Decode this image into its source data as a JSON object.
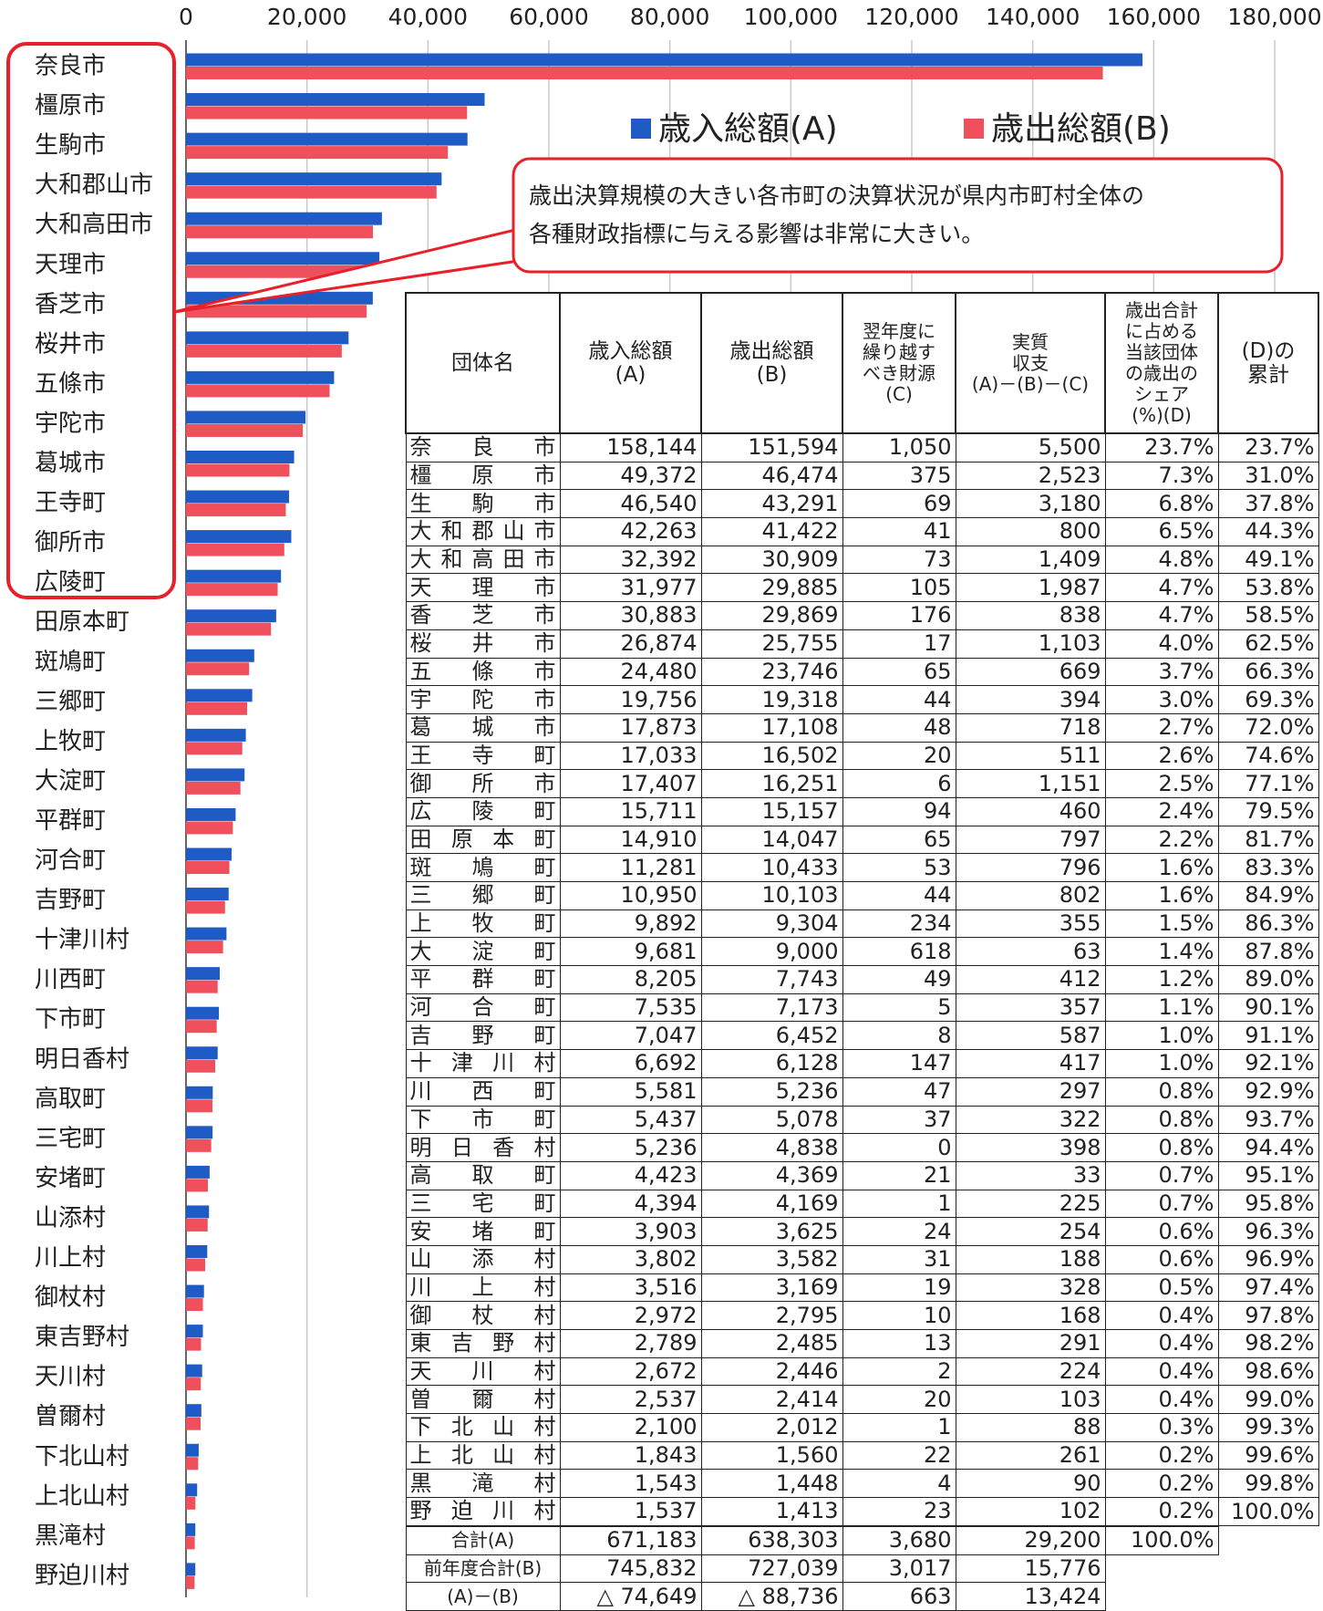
{
  "chart_data": {
    "type": "bar",
    "orientation": "horizontal",
    "categories": [
      "奈良市",
      "橿原市",
      "生駒市",
      "大和郡山市",
      "大和高田市",
      "天理市",
      "香芝市",
      "桜井市",
      "五條市",
      "宇陀市",
      "葛城市",
      "王寺町",
      "御所市",
      "広陵町",
      "田原本町",
      "斑鳩町",
      "三郷町",
      "上牧町",
      "大淀町",
      "平群町",
      "河合町",
      "吉野町",
      "十津川村",
      "川西町",
      "下市町",
      "明日香村",
      "高取町",
      "三宅町",
      "安堵町",
      "山添村",
      "川上村",
      "御杖村",
      "東吉野村",
      "天川村",
      "曽爾村",
      "下北山村",
      "上北山村",
      "黒滝村",
      "野迫川村"
    ],
    "series": [
      {
        "name": "歳入総額(A)",
        "color": "#1f5bc4",
        "values": [
          158144,
          49372,
          46540,
          42263,
          32392,
          31977,
          30883,
          26874,
          24480,
          19756,
          17873,
          17033,
          17407,
          15711,
          14910,
          11281,
          10950,
          9892,
          9681,
          8205,
          7535,
          7047,
          6692,
          5581,
          5437,
          5236,
          4423,
          4394,
          3903,
          3802,
          3516,
          2972,
          2789,
          2672,
          2537,
          2100,
          1843,
          1543,
          1537
        ]
      },
      {
        "name": "歳出総額(B)",
        "color": "#f0505c",
        "values": [
          151594,
          46474,
          43291,
          41422,
          30909,
          29885,
          29869,
          25755,
          23746,
          19318,
          17108,
          16502,
          16251,
          15157,
          14047,
          10433,
          10103,
          9304,
          9000,
          7743,
          7173,
          6452,
          6128,
          5236,
          5078,
          4838,
          4369,
          4169,
          3625,
          3582,
          3169,
          2795,
          2485,
          2446,
          2414,
          2012,
          1560,
          1448,
          1413
        ]
      }
    ],
    "xlim": [
      0,
      180000
    ],
    "xticks": [
      0,
      {
        "value": 20000,
        "label": "20,000"
      },
      {
        "value": 40000,
        "label": "40,000"
      },
      {
        "value": 60000,
        "label": "60,000"
      },
      {
        "value": 80000,
        "label": "80,000"
      },
      {
        "value": 100000,
        "label": "100,000"
      },
      {
        "value": 120000,
        "label": "120,000"
      },
      {
        "value": 140000,
        "label": "140,000"
      },
      {
        "value": 160000,
        "label": "160,000"
      },
      {
        "value": 180000,
        "label": "180,000"
      }
    ],
    "grid": true,
    "annotation": [
      "歳出決算規模の大きい各市町の決算状況が県内市町村全体の",
      "各種財政指標に与える影響は非常に大きい。"
    ]
  },
  "table": {
    "header": [
      "団体名",
      "歳入総額\n(A)",
      "歳出総額\n(B)",
      "翌年度に\n繰り越す\nべき財源\n(C)",
      "実質\n収支\n(A)－(B)－(C)",
      "歳出合計\nに占める\n当該団体\nの歳出の\nシェア\n(%)(D)",
      "(D)の\n累計"
    ],
    "rows": [
      [
        "奈良市",
        "158,144",
        "151,594",
        "1,050",
        "5,500",
        "23.7%",
        "23.7%"
      ],
      [
        "橿原市",
        "49,372",
        "46,474",
        "375",
        "2,523",
        "7.3%",
        "31.0%"
      ],
      [
        "生駒市",
        "46,540",
        "43,291",
        "69",
        "3,180",
        "6.8%",
        "37.8%"
      ],
      [
        "大和郡山市",
        "42,263",
        "41,422",
        "41",
        "800",
        "6.5%",
        "44.3%"
      ],
      [
        "大和高田市",
        "32,392",
        "30,909",
        "73",
        "1,409",
        "4.8%",
        "49.1%"
      ],
      [
        "天理市",
        "31,977",
        "29,885",
        "105",
        "1,987",
        "4.7%",
        "53.8%"
      ],
      [
        "香芝市",
        "30,883",
        "29,869",
        "176",
        "838",
        "4.7%",
        "58.5%"
      ],
      [
        "桜井市",
        "26,874",
        "25,755",
        "17",
        "1,103",
        "4.0%",
        "62.5%"
      ],
      [
        "五條市",
        "24,480",
        "23,746",
        "65",
        "669",
        "3.7%",
        "66.3%"
      ],
      [
        "宇陀市",
        "19,756",
        "19,318",
        "44",
        "394",
        "3.0%",
        "69.3%"
      ],
      [
        "葛城市",
        "17,873",
        "17,108",
        "48",
        "718",
        "2.7%",
        "72.0%"
      ],
      [
        "王寺町",
        "17,033",
        "16,502",
        "20",
        "511",
        "2.6%",
        "74.6%"
      ],
      [
        "御所市",
        "17,407",
        "16,251",
        "6",
        "1,151",
        "2.5%",
        "77.1%"
      ],
      [
        "広陵町",
        "15,711",
        "15,157",
        "94",
        "460",
        "2.4%",
        "79.5%"
      ],
      [
        "田原本町",
        "14,910",
        "14,047",
        "65",
        "797",
        "2.2%",
        "81.7%"
      ],
      [
        "斑鳩町",
        "11,281",
        "10,433",
        "53",
        "796",
        "1.6%",
        "83.3%"
      ],
      [
        "三郷町",
        "10,950",
        "10,103",
        "44",
        "802",
        "1.6%",
        "84.9%"
      ],
      [
        "上牧町",
        "9,892",
        "9,304",
        "234",
        "355",
        "1.5%",
        "86.3%"
      ],
      [
        "大淀町",
        "9,681",
        "9,000",
        "618",
        "63",
        "1.4%",
        "87.8%"
      ],
      [
        "平群町",
        "8,205",
        "7,743",
        "49",
        "412",
        "1.2%",
        "89.0%"
      ],
      [
        "河合町",
        "7,535",
        "7,173",
        "5",
        "357",
        "1.1%",
        "90.1%"
      ],
      [
        "吉野町",
        "7,047",
        "6,452",
        "8",
        "587",
        "1.0%",
        "91.1%"
      ],
      [
        "十津川村",
        "6,692",
        "6,128",
        "147",
        "417",
        "1.0%",
        "92.1%"
      ],
      [
        "川西町",
        "5,581",
        "5,236",
        "47",
        "297",
        "0.8%",
        "92.9%"
      ],
      [
        "下市町",
        "5,437",
        "5,078",
        "37",
        "322",
        "0.8%",
        "93.7%"
      ],
      [
        "明日香村",
        "5,236",
        "4,838",
        "0",
        "398",
        "0.8%",
        "94.4%"
      ],
      [
        "高取町",
        "4,423",
        "4,369",
        "21",
        "33",
        "0.7%",
        "95.1%"
      ],
      [
        "三宅町",
        "4,394",
        "4,169",
        "1",
        "225",
        "0.7%",
        "95.8%"
      ],
      [
        "安堵町",
        "3,903",
        "3,625",
        "24",
        "254",
        "0.6%",
        "96.3%"
      ],
      [
        "山添村",
        "3,802",
        "3,582",
        "31",
        "188",
        "0.6%",
        "96.9%"
      ],
      [
        "川上村",
        "3,516",
        "3,169",
        "19",
        "328",
        "0.5%",
        "97.4%"
      ],
      [
        "御杖村",
        "2,972",
        "2,795",
        "10",
        "168",
        "0.4%",
        "97.8%"
      ],
      [
        "東吉野村",
        "2,789",
        "2,485",
        "13",
        "291",
        "0.4%",
        "98.2%"
      ],
      [
        "天川村",
        "2,672",
        "2,446",
        "2",
        "224",
        "0.4%",
        "98.6%"
      ],
      [
        "曽爾村",
        "2,537",
        "2,414",
        "20",
        "103",
        "0.4%",
        "99.0%"
      ],
      [
        "下北山村",
        "2,100",
        "2,012",
        "1",
        "88",
        "0.3%",
        "99.3%"
      ],
      [
        "上北山村",
        "1,843",
        "1,560",
        "22",
        "261",
        "0.2%",
        "99.6%"
      ],
      [
        "黒滝村",
        "1,543",
        "1,448",
        "4",
        "90",
        "0.2%",
        "99.8%"
      ],
      [
        "野迫川村",
        "1,537",
        "1,413",
        "23",
        "102",
        "0.2%",
        "100.0%"
      ]
    ],
    "totals": [
      [
        "合計(A)",
        "671,183",
        "638,303",
        "3,680",
        "29,200",
        "100.0%"
      ],
      [
        "前年度合計(B)",
        "745,832",
        "727,039",
        "3,017",
        "15,776"
      ],
      [
        "(A)－(B)",
        "△ 74,649",
        "△ 88,736",
        "663",
        "13,424"
      ]
    ]
  }
}
